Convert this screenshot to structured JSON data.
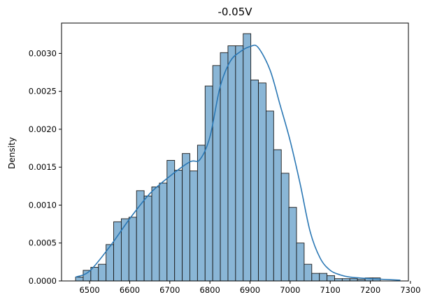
{
  "chart_data": {
    "type": "bar",
    "title": "-0.05V",
    "xlabel": "",
    "ylabel": "Density",
    "xlim": [
      6430,
      7295
    ],
    "ylim": [
      0,
      0.0034
    ],
    "xticks": [
      6500,
      6600,
      6700,
      6800,
      6900,
      7000,
      7100,
      7200,
      7300
    ],
    "xtick_labels": [
      "6500",
      "6600",
      "6700",
      "6800",
      "6900",
      "7000",
      "7100",
      "7200",
      "7300"
    ],
    "yticks": [
      0,
      0.0005,
      0.001,
      0.0015,
      0.002,
      0.0025,
      0.003
    ],
    "ytick_labels": [
      "0.0000",
      "0.0005",
      "0.0010",
      "0.0015",
      "0.0020",
      "0.0025",
      "0.0030"
    ],
    "grid": false,
    "bar_color": "#8ab6d6",
    "bar_edge_color": "#1a1a1a",
    "kde_color": "#2a77b4",
    "bins": [
      {
        "x0": 6465,
        "x1": 6484,
        "value": 5e-05
      },
      {
        "x0": 6484,
        "x1": 6503,
        "value": 0.00014
      },
      {
        "x0": 6503,
        "x1": 6522,
        "value": 0.00018
      },
      {
        "x0": 6522,
        "x1": 6541,
        "value": 0.00022
      },
      {
        "x0": 6541,
        "x1": 6560,
        "value": 0.00048
      },
      {
        "x0": 6560,
        "x1": 6579,
        "value": 0.00078
      },
      {
        "x0": 6579,
        "x1": 6598,
        "value": 0.00082
      },
      {
        "x0": 6598,
        "x1": 6617,
        "value": 0.00084
      },
      {
        "x0": 6617,
        "x1": 6636,
        "value": 0.00119
      },
      {
        "x0": 6636,
        "x1": 6655,
        "value": 0.00112
      },
      {
        "x0": 6655,
        "x1": 6674,
        "value": 0.00124
      },
      {
        "x0": 6674,
        "x1": 6693,
        "value": 0.00129
      },
      {
        "x0": 6693,
        "x1": 6712,
        "value": 0.00159
      },
      {
        "x0": 6712,
        "x1": 6731,
        "value": 0.00146
      },
      {
        "x0": 6731,
        "x1": 6750,
        "value": 0.00168
      },
      {
        "x0": 6750,
        "x1": 6769,
        "value": 0.00145
      },
      {
        "x0": 6769,
        "x1": 6788,
        "value": 0.00179
      },
      {
        "x0": 6788,
        "x1": 6807,
        "value": 0.00257
      },
      {
        "x0": 6807,
        "x1": 6826,
        "value": 0.00284
      },
      {
        "x0": 6826,
        "x1": 6845,
        "value": 0.00301
      },
      {
        "x0": 6845,
        "x1": 6864,
        "value": 0.0031
      },
      {
        "x0": 6864,
        "x1": 6883,
        "value": 0.0031
      },
      {
        "x0": 6883,
        "x1": 6902,
        "value": 0.00326
      },
      {
        "x0": 6902,
        "x1": 6921,
        "value": 0.00265
      },
      {
        "x0": 6921,
        "x1": 6940,
        "value": 0.00261
      },
      {
        "x0": 6940,
        "x1": 6959,
        "value": 0.00224
      },
      {
        "x0": 6959,
        "x1": 6978,
        "value": 0.00173
      },
      {
        "x0": 6978,
        "x1": 6997,
        "value": 0.00142
      },
      {
        "x0": 6997,
        "x1": 7016,
        "value": 0.00097
      },
      {
        "x0": 7016,
        "x1": 7035,
        "value": 0.0005
      },
      {
        "x0": 7035,
        "x1": 7054,
        "value": 0.00022
      },
      {
        "x0": 7054,
        "x1": 7073,
        "value": 0.0001
      },
      {
        "x0": 7073,
        "x1": 7092,
        "value": 0.0001
      },
      {
        "x0": 7092,
        "x1": 7111,
        "value": 7e-05
      },
      {
        "x0": 7111,
        "x1": 7130,
        "value": 3e-05
      },
      {
        "x0": 7130,
        "x1": 7149,
        "value": 3e-05
      },
      {
        "x0": 7149,
        "x1": 7168,
        "value": 3e-05
      },
      {
        "x0": 7168,
        "x1": 7187,
        "value": 2e-05
      },
      {
        "x0": 7187,
        "x1": 7206,
        "value": 4e-05
      },
      {
        "x0": 7206,
        "x1": 7225,
        "value": 4e-05
      }
    ],
    "kde": {
      "x": [
        6465,
        6500,
        6550,
        6600,
        6650,
        6700,
        6750,
        6775,
        6800,
        6825,
        6850,
        6875,
        6900,
        6920,
        6950,
        6975,
        7000,
        7025,
        7050,
        7075,
        7100,
        7125,
        7150,
        7200,
        7275
      ],
      "y": [
        5e-05,
        0.00013,
        0.00045,
        0.00082,
        0.00115,
        0.00138,
        0.00157,
        0.0016,
        0.0019,
        0.00255,
        0.00289,
        0.00302,
        0.00309,
        0.00308,
        0.00278,
        0.00232,
        0.00185,
        0.00128,
        0.00065,
        0.0003,
        0.00014,
        8e-05,
        5e-05,
        3e-05,
        1e-05
      ]
    }
  }
}
